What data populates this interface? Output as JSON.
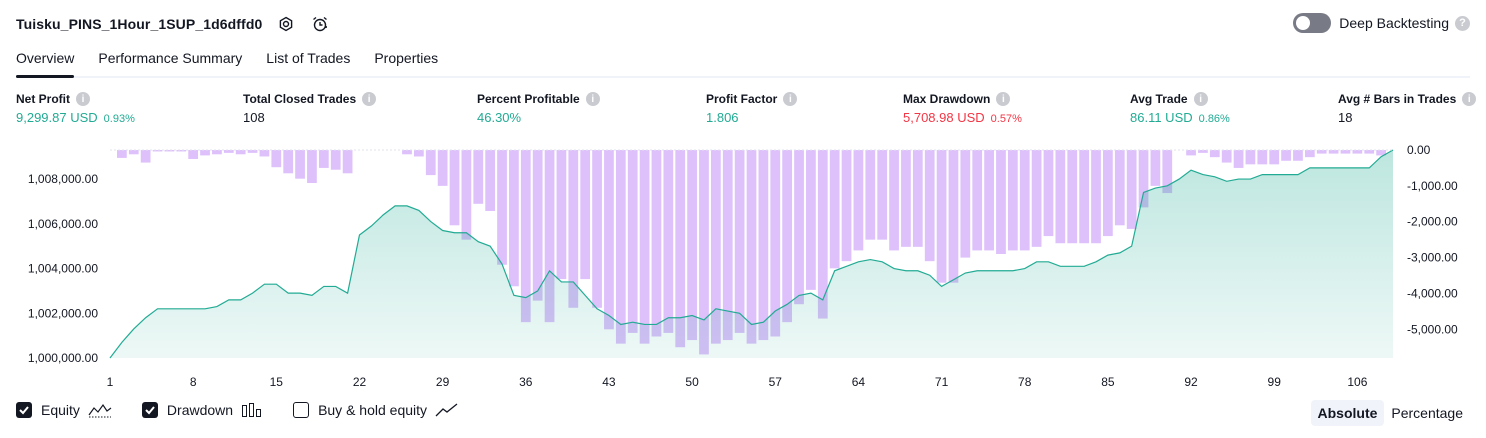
{
  "header": {
    "title": "Tuisku_PINS_1Hour_1SUP_1d6dffd0",
    "settings_icon": "gear-icon",
    "alert_icon": "alarm-clock-icon"
  },
  "deep_backtesting": {
    "label": "Deep Backtesting",
    "enabled": false,
    "help": "?"
  },
  "tabs": [
    {
      "label": "Overview",
      "active": true
    },
    {
      "label": "Performance Summary",
      "active": false
    },
    {
      "label": "List of Trades",
      "active": false
    },
    {
      "label": "Properties",
      "active": false
    }
  ],
  "metrics": [
    {
      "label": "Net Profit",
      "value": "9,299.87 USD",
      "sub": "0.93%",
      "color": "#22ab94"
    },
    {
      "label": "Total Closed Trades",
      "value": "108",
      "sub": "",
      "color": "#131722"
    },
    {
      "label": "Percent Profitable",
      "value": "46.30%",
      "sub": "",
      "color": "#22ab94"
    },
    {
      "label": "Profit Factor",
      "value": "1.806",
      "sub": "",
      "color": "#22ab94"
    },
    {
      "label": "Max Drawdown",
      "value": "5,708.98 USD",
      "sub": "0.57%",
      "color": "#f23645"
    },
    {
      "label": "Avg Trade",
      "value": "86.11 USD",
      "sub": "0.86%",
      "color": "#22ab94"
    },
    {
      "label": "Avg # Bars in Trades",
      "value": "18",
      "sub": "",
      "color": "#131722"
    }
  ],
  "legend": {
    "equity": {
      "label": "Equity",
      "checked": true
    },
    "drawdown": {
      "label": "Drawdown",
      "checked": true
    },
    "buy_hold": {
      "label": "Buy & hold equity",
      "checked": false
    }
  },
  "modes": {
    "absolute": "Absolute",
    "percentage": "Percentage",
    "selected": "Absolute"
  },
  "chart_data": {
    "type": "area",
    "colors": {
      "equity_line": "#22ab94",
      "equity_fill": "#22ab94",
      "drawdown_bar": "#c896f8"
    },
    "x_ticks": [
      "1",
      "8",
      "15",
      "22",
      "29",
      "36",
      "43",
      "50",
      "57",
      "64",
      "71",
      "78",
      "85",
      "92",
      "99",
      "106"
    ],
    "x_range": [
      1,
      109
    ],
    "left_axis": {
      "label": "Equity",
      "ticks": [
        "1,000,000.00",
        "1,002,000.00",
        "1,004,000.00",
        "1,006,000.00",
        "1,008,000.00"
      ],
      "range": [
        1000000,
        1009300
      ]
    },
    "right_axis": {
      "label": "Drawdown",
      "ticks": [
        "0.00",
        "-1,000.00",
        "-2,000.00",
        "-3,000.00",
        "-4,000.00",
        "-5,000.00"
      ],
      "range": [
        -5800,
        0
      ]
    },
    "series": [
      {
        "name": "Equity",
        "x": [
          1,
          2,
          3,
          4,
          5,
          6,
          7,
          8,
          9,
          10,
          11,
          12,
          13,
          14,
          15,
          16,
          17,
          18,
          19,
          20,
          21,
          22,
          23,
          24,
          25,
          26,
          27,
          28,
          29,
          30,
          31,
          32,
          33,
          34,
          35,
          36,
          37,
          38,
          39,
          40,
          41,
          42,
          43,
          44,
          45,
          46,
          47,
          48,
          49,
          50,
          51,
          52,
          53,
          54,
          55,
          56,
          57,
          58,
          59,
          60,
          61,
          62,
          63,
          64,
          65,
          66,
          67,
          68,
          69,
          70,
          71,
          72,
          73,
          74,
          75,
          76,
          77,
          78,
          79,
          80,
          81,
          82,
          83,
          84,
          85,
          86,
          87,
          88,
          89,
          90,
          91,
          92,
          93,
          94,
          95,
          96,
          97,
          98,
          99,
          100,
          101,
          102,
          103,
          104,
          105,
          106,
          107,
          108,
          109
        ],
        "values": [
          1000000,
          1000700,
          1001300,
          1001800,
          1002200,
          1002200,
          1002200,
          1002200,
          1002200,
          1002300,
          1002600,
          1002600,
          1002900,
          1003300,
          1003300,
          1002900,
          1002900,
          1002800,
          1003200,
          1003200,
          1002900,
          1005500,
          1005900,
          1006400,
          1006800,
          1006800,
          1006600,
          1006100,
          1005700,
          1005600,
          1005600,
          1005200,
          1005000,
          1004200,
          1002800,
          1002700,
          1003000,
          1003900,
          1003400,
          1003400,
          1002800,
          1002200,
          1001900,
          1001500,
          1001600,
          1001500,
          1001500,
          1001800,
          1001800,
          1001900,
          1001700,
          1002200,
          1002100,
          1002000,
          1001500,
          1001600,
          1002100,
          1002400,
          1002800,
          1002900,
          1002600,
          1003900,
          1004100,
          1004300,
          1004400,
          1004300,
          1004000,
          1003900,
          1003900,
          1003700,
          1003200,
          1003500,
          1003800,
          1003900,
          1003900,
          1003900,
          1003900,
          1004000,
          1004300,
          1004300,
          1004100,
          1004100,
          1004100,
          1004300,
          1004600,
          1004700,
          1005000,
          1007400,
          1007600,
          1007700,
          1008000,
          1008400,
          1008200,
          1008100,
          1007900,
          1008000,
          1008000,
          1008200,
          1008200,
          1008200,
          1008200,
          1008500,
          1008500,
          1008500,
          1008500,
          1008500,
          1008500,
          1009000,
          1009300
        ]
      },
      {
        "name": "Drawdown",
        "x": [
          1,
          2,
          3,
          4,
          5,
          6,
          7,
          8,
          9,
          10,
          11,
          12,
          13,
          14,
          15,
          16,
          17,
          18,
          19,
          20,
          21,
          22,
          23,
          24,
          25,
          26,
          27,
          28,
          29,
          30,
          31,
          32,
          33,
          34,
          35,
          36,
          37,
          38,
          39,
          40,
          41,
          42,
          43,
          44,
          45,
          46,
          47,
          48,
          49,
          50,
          51,
          52,
          53,
          54,
          55,
          56,
          57,
          58,
          59,
          60,
          61,
          62,
          63,
          64,
          65,
          66,
          67,
          68,
          69,
          70,
          71,
          72,
          73,
          74,
          75,
          76,
          77,
          78,
          79,
          80,
          81,
          82,
          83,
          84,
          85,
          86,
          87,
          88,
          89,
          90,
          91,
          92,
          93,
          94,
          95,
          96,
          97,
          98,
          99,
          100,
          101,
          102,
          103,
          104,
          105,
          106,
          107,
          108,
          109
        ],
        "values": [
          0,
          -220,
          -120,
          -350,
          -40,
          -40,
          -40,
          -250,
          -150,
          -120,
          -80,
          -120,
          -80,
          -180,
          -480,
          -650,
          -800,
          -920,
          -500,
          -550,
          -650,
          0,
          0,
          0,
          0,
          -120,
          -180,
          -700,
          -1000,
          -2100,
          -2500,
          -1500,
          -1700,
          -3200,
          -3800,
          -4800,
          -4200,
          -4800,
          -3600,
          -4400,
          -3600,
          -4400,
          -5000,
          -5400,
          -5100,
          -5400,
          -5200,
          -5100,
          -5500,
          -5300,
          -5700,
          -5400,
          -5300,
          -5100,
          -5400,
          -5300,
          -5200,
          -4800,
          -4300,
          -3900,
          -4700,
          -3300,
          -3100,
          -2800,
          -2500,
          -2500,
          -2800,
          -2700,
          -2700,
          -3100,
          -3700,
          -3700,
          -3000,
          -2800,
          -2800,
          -2900,
          -2800,
          -2800,
          -2700,
          -2400,
          -2600,
          -2600,
          -2600,
          -2600,
          -2400,
          -2100,
          -2200,
          -1600,
          -1000,
          -1200,
          0,
          -150,
          -80,
          -200,
          -350,
          -500,
          -400,
          -400,
          -400,
          -300,
          -300,
          -200,
          -100,
          -100,
          -100,
          -100,
          -100,
          -150,
          0
        ]
      }
    ]
  }
}
